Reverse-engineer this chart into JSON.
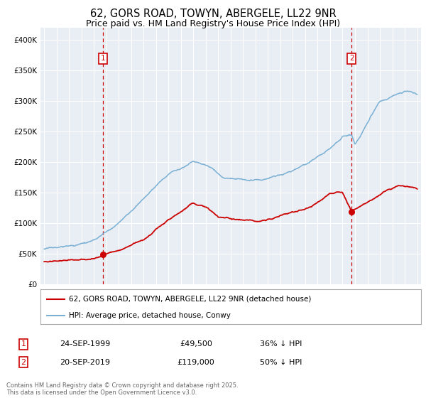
{
  "title": "62, GORS ROAD, TOWYN, ABERGELE, LL22 9NR",
  "subtitle": "Price paid vs. HM Land Registry's House Price Index (HPI)",
  "ylim": [
    0,
    420000
  ],
  "yticks": [
    0,
    50000,
    100000,
    150000,
    200000,
    250000,
    300000,
    350000,
    400000
  ],
  "ytick_labels": [
    "£0",
    "£50K",
    "£100K",
    "£150K",
    "£200K",
    "£250K",
    "£300K",
    "£350K",
    "£400K"
  ],
  "x_start_year": 1995,
  "x_end_year": 2025,
  "sale1_year": 1999.73,
  "sale1_price": 49500,
  "sale1_label": "1",
  "sale1_date": "24-SEP-1999",
  "sale1_hpi_text": "36% ↓ HPI",
  "sale2_year": 2019.72,
  "sale2_price": 119000,
  "sale2_label": "2",
  "sale2_date": "20-SEP-2019",
  "sale2_hpi_text": "50% ↓ HPI",
  "red_line_color": "#cc0000",
  "blue_line_color": "#7ab0d4",
  "vline_color": "#cc0000",
  "marker_box_color": "#cc0000",
  "background_color": "#ffffff",
  "chart_bg_color": "#e8eef4",
  "grid_color": "#ffffff",
  "legend_label_red": "62, GORS ROAD, TOWYN, ABERGELE, LL22 9NR (detached house)",
  "legend_label_blue": "HPI: Average price, detached house, Conwy",
  "footer": "Contains HM Land Registry data © Crown copyright and database right 2025.\nThis data is licensed under the Open Government Licence v3.0.",
  "title_fontsize": 10.5,
  "subtitle_fontsize": 9,
  "tick_fontsize": 7.5,
  "legend_fontsize": 7.5
}
